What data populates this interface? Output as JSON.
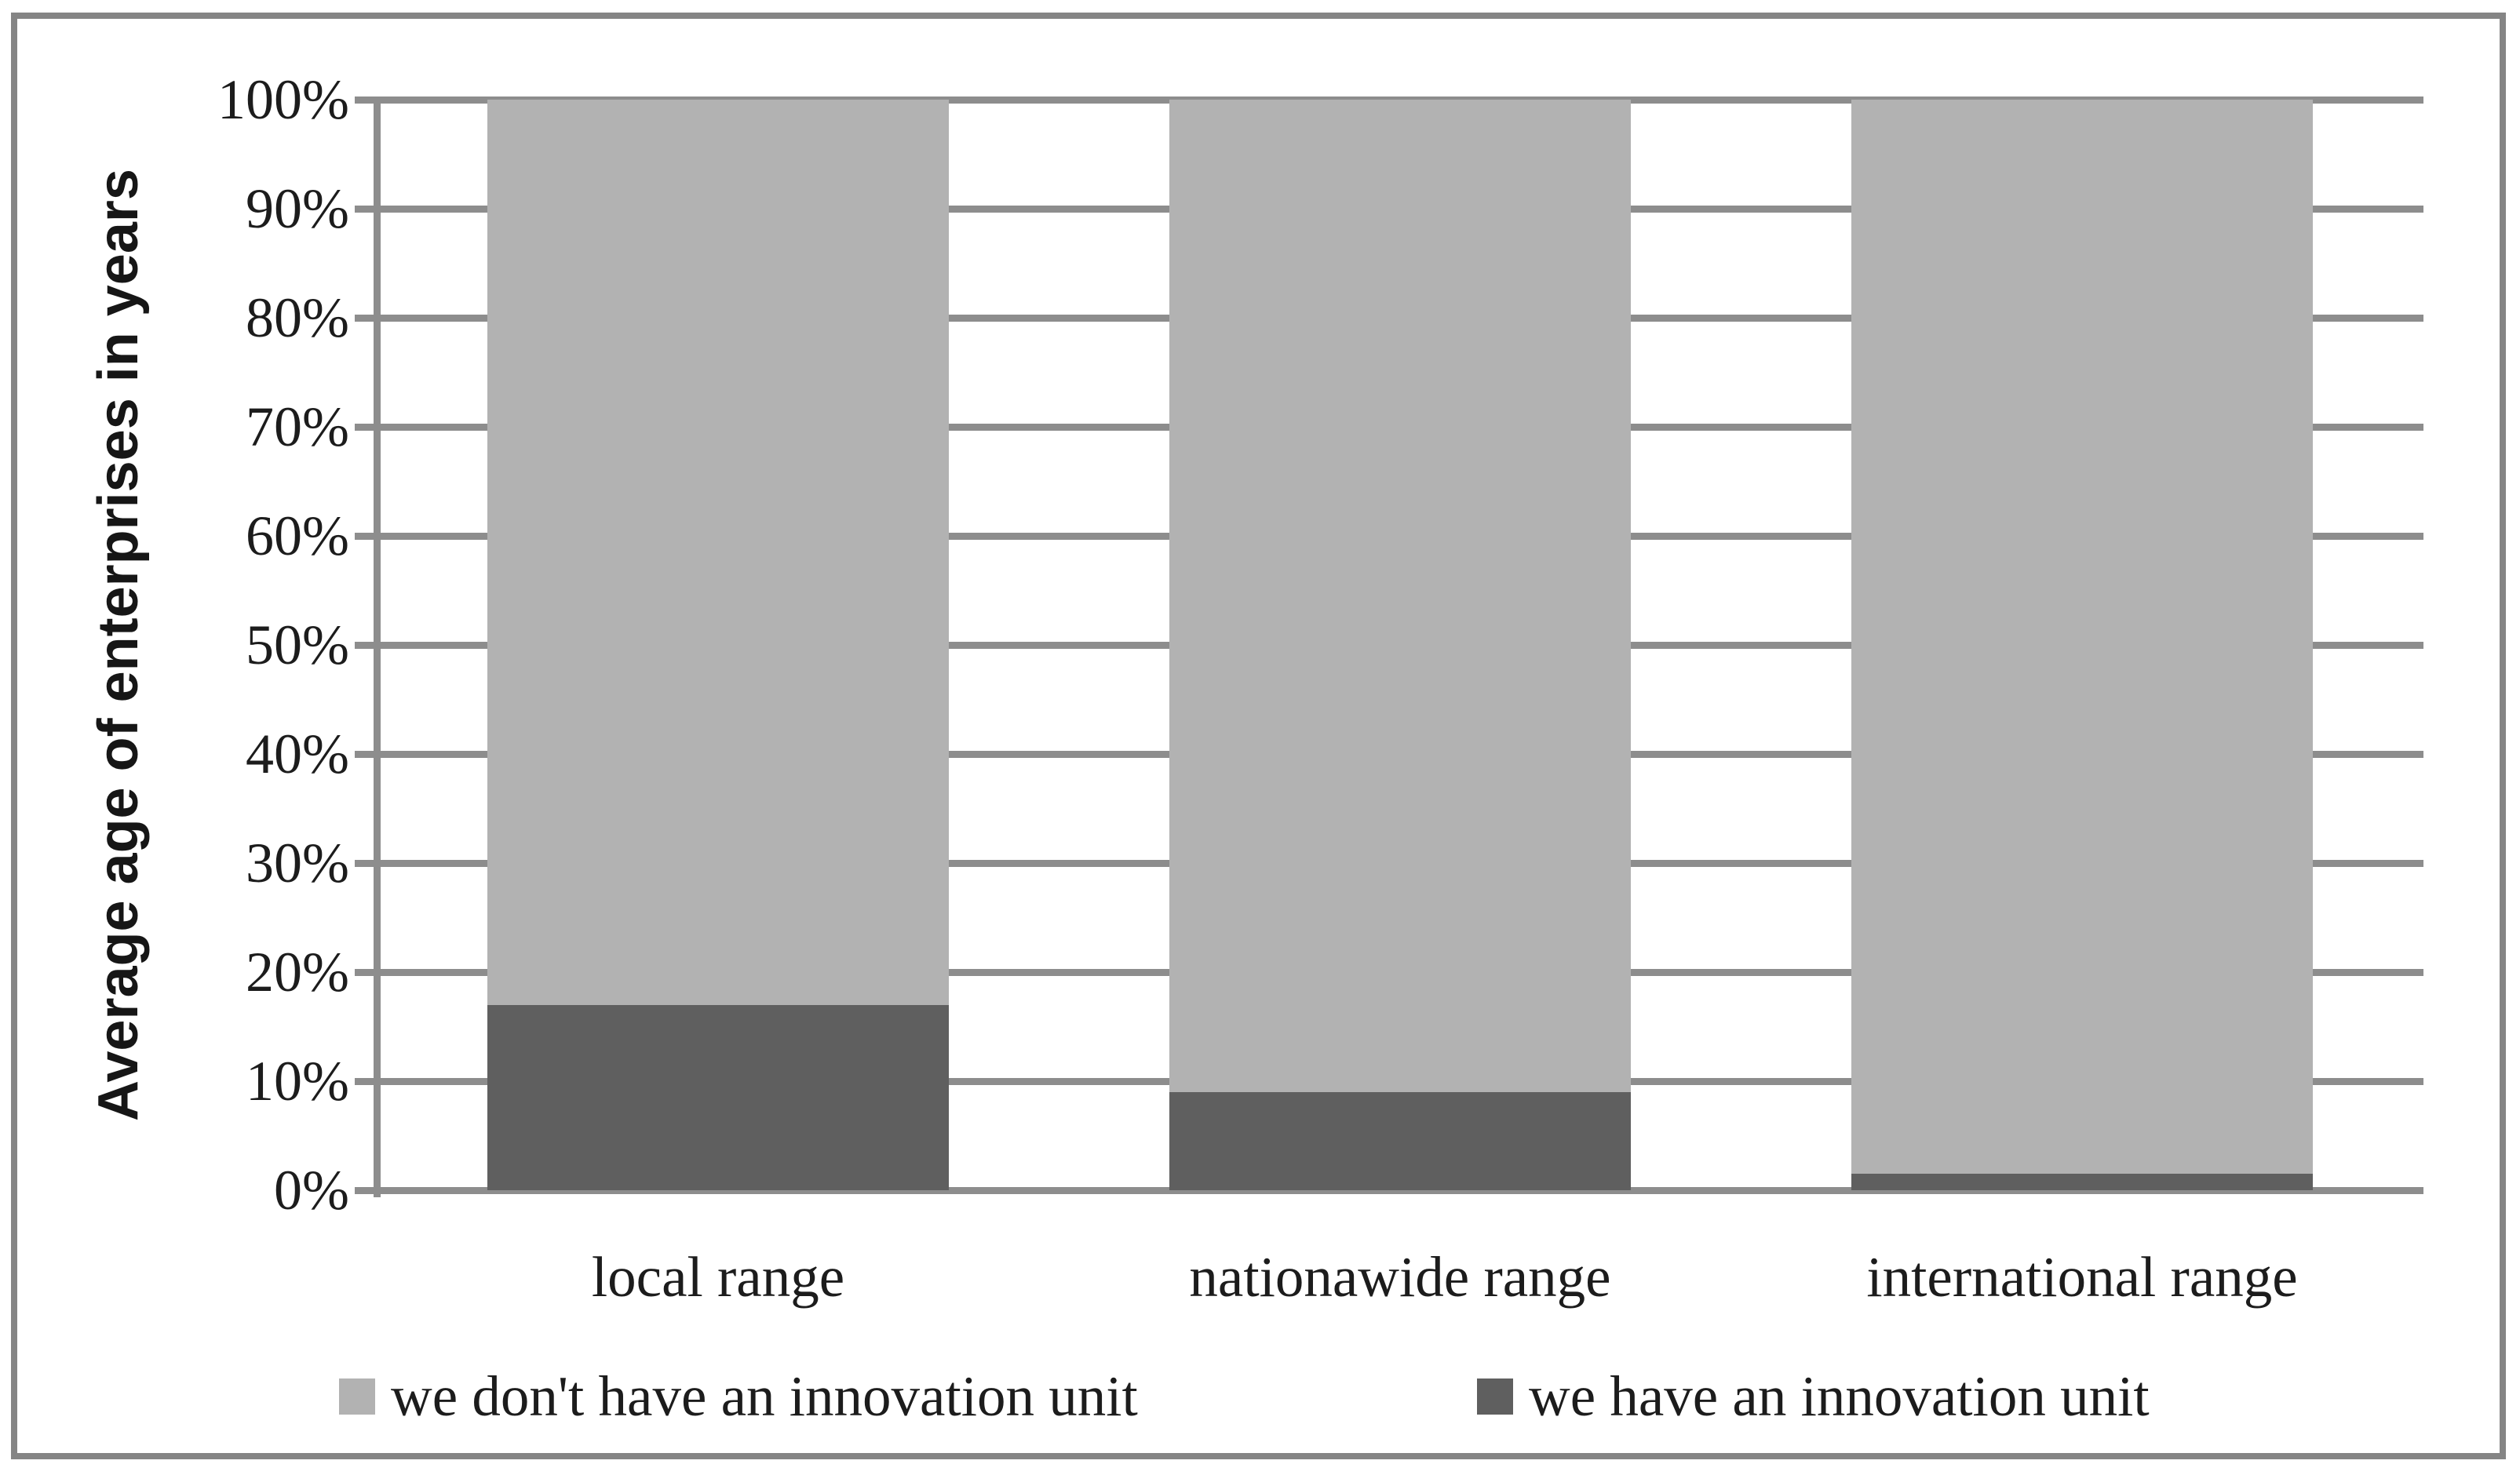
{
  "figure": {
    "background": "#ffffff",
    "border_color": "#858585"
  },
  "chart_data": {
    "type": "bar",
    "stacked": true,
    "title": "",
    "xlabel": "",
    "ylabel": "Average age of enterprises in years",
    "categories": [
      "local range",
      "nationawide range",
      "international range"
    ],
    "series": [
      {
        "name": "we don't have an innovation unit",
        "color": "#b2b2b2",
        "values": [
          83,
          91,
          98.5
        ]
      },
      {
        "name": "we have an innovation unit",
        "color": "#5f5f5f",
        "values": [
          17,
          9,
          1.5
        ]
      }
    ],
    "stack_order": "last series at bottom of stack",
    "ylim": [
      0,
      100
    ],
    "ytick_step": 10,
    "yticks": [
      "0%",
      "10%",
      "20%",
      "30%",
      "40%",
      "50%",
      "60%",
      "70%",
      "80%",
      "90%",
      "100%"
    ],
    "grid": "horizontal",
    "legend_position": "bottom",
    "colors": {
      "axis": "#8d8d8d",
      "grid": "#8d8d8d",
      "text": "#1c1c1c",
      "plot_background": "#ffffff"
    }
  }
}
